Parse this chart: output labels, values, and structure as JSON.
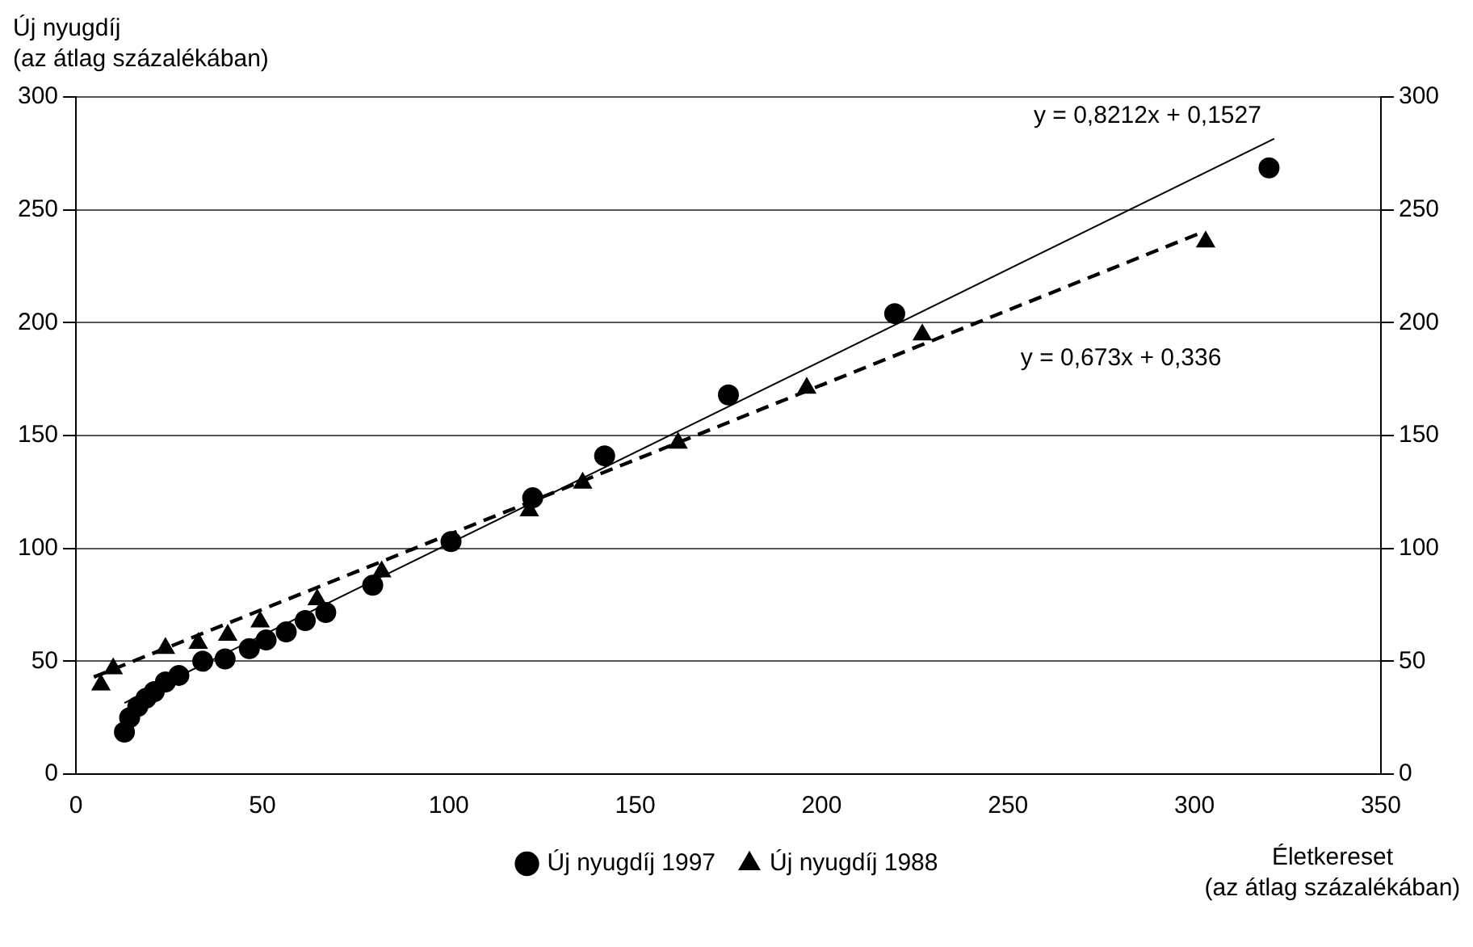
{
  "chart_data": {
    "type": "scatter",
    "xlabel": "Életkereset\n(az átlag százalékában)",
    "ylabel": "Új nyugdíj\n(az átlag százalékában)",
    "xlim": [
      0,
      350
    ],
    "xticks": [
      0,
      50,
      100,
      150,
      200,
      250,
      300,
      350
    ],
    "ylim": [
      0,
      300
    ],
    "yticks": [
      0,
      50,
      100,
      150,
      200,
      250,
      300
    ],
    "y2lim": [
      0,
      300
    ],
    "y2ticks": [
      0,
      50,
      100,
      150,
      200,
      250,
      300
    ],
    "grid": "y",
    "legend": "bottom",
    "series": [
      {
        "name": "Új nyugdíj 1997",
        "type": "scatter",
        "marker": "circle",
        "color": "#000000",
        "x": [
          13,
          14.4,
          16.6,
          18.8,
          21,
          24,
          27.6,
          34,
          40,
          46.5,
          51,
          56.4,
          61.5,
          67,
          79.6,
          100.6,
          122.5,
          141.8,
          175,
          219.6,
          320
        ],
        "values": [
          18.6,
          25,
          30,
          33.6,
          36.5,
          40.8,
          43.7,
          50,
          51,
          55.6,
          59.4,
          63,
          68,
          71.6,
          83.7,
          103,
          122.4,
          141,
          168,
          204,
          268.6
        ]
      },
      {
        "name": "Új nyugdíj 1988",
        "type": "scatter",
        "marker": "triangle",
        "color": "#000000",
        "x": [
          6.7,
          10,
          24,
          32.8,
          40.7,
          49.4,
          64.7,
          82,
          121.6,
          135.9,
          161.5,
          196,
          227,
          303
        ],
        "values": [
          39.6,
          46.7,
          55.8,
          58,
          61.6,
          67.5,
          77.3,
          89.7,
          116.7,
          129,
          146.7,
          171,
          194.7,
          235.8
        ]
      },
      {
        "type": "line",
        "marker": "none",
        "line_style": "solid",
        "color": "#000000",
        "x": [
          13,
          321.4
        ],
        "values": [
          31.5,
          281.5
        ]
      },
      {
        "type": "line",
        "marker": "none",
        "line_style": "dashed",
        "color": "#000000",
        "x": [
          4.8,
          302
        ],
        "values": [
          43,
          240
        ]
      }
    ],
    "annotations": [
      "y = 0,8212x + 0,1527",
      "y = 0,673x + 0,336"
    ]
  }
}
